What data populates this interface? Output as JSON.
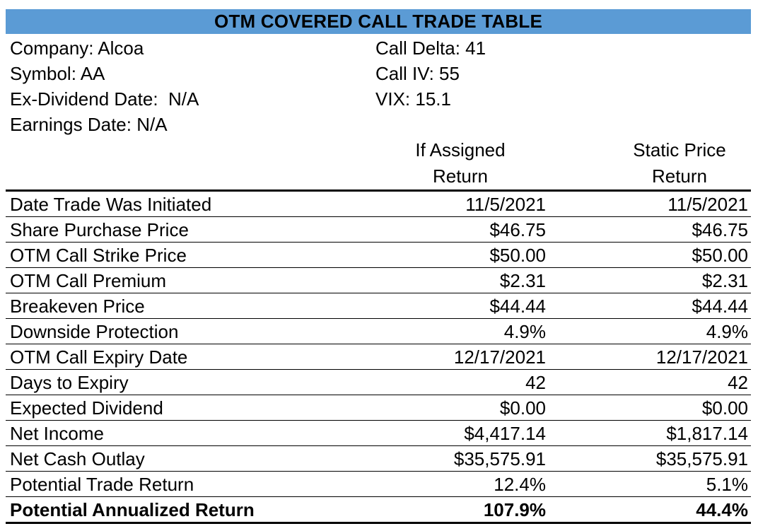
{
  "title": "OTM COVERED CALL TRADE TABLE",
  "colors": {
    "title_background": "#5b9bd5",
    "text": "#000000"
  },
  "info_left": [
    "Company: Alcoa",
    "Symbol: AA",
    "Ex-Dividend Date:  N/A",
    "Earnings Date: N/A"
  ],
  "info_right": [
    "Call Delta: 41",
    "Call IV: 55",
    "VIX: 15.1"
  ],
  "columns": {
    "if_assigned": [
      "If Assigned",
      "Return"
    ],
    "static": [
      "Static Price",
      "Return"
    ]
  },
  "rows": [
    {
      "label": "Date Trade Was Initiated",
      "if_assigned": "11/5/2021",
      "static": "11/5/2021"
    },
    {
      "label": "Share Purchase Price",
      "if_assigned": "$46.75",
      "static": "$46.75"
    },
    {
      "label": "OTM Call Strike Price",
      "if_assigned": "$50.00",
      "static": "$50.00"
    },
    {
      "label": "OTM Call Premium",
      "if_assigned": "$2.31",
      "static": "$2.31"
    },
    {
      "label": "Breakeven Price",
      "if_assigned": "$44.44",
      "static": "$44.44"
    },
    {
      "label": "Downside Protection",
      "if_assigned": "4.9%",
      "static": "4.9%"
    },
    {
      "label": "OTM Call Expiry Date",
      "if_assigned": "12/17/2021",
      "static": "12/17/2021"
    },
    {
      "label": "Days to Expiry",
      "if_assigned": "42",
      "static": "42"
    },
    {
      "label": "Expected Dividend",
      "if_assigned": "$0.00",
      "static": "$0.00"
    },
    {
      "label": "Net Income",
      "if_assigned": "$4,417.14",
      "static": "$1,817.14"
    },
    {
      "label": "Net Cash Outlay",
      "if_assigned": "$35,575.91",
      "static": "$35,575.91"
    },
    {
      "label": "Potential Trade Return",
      "if_assigned": "12.4%",
      "static": "5.1%"
    },
    {
      "label": "Potential Annualized Return",
      "if_assigned": "107.9%",
      "static": "44.4%"
    }
  ]
}
